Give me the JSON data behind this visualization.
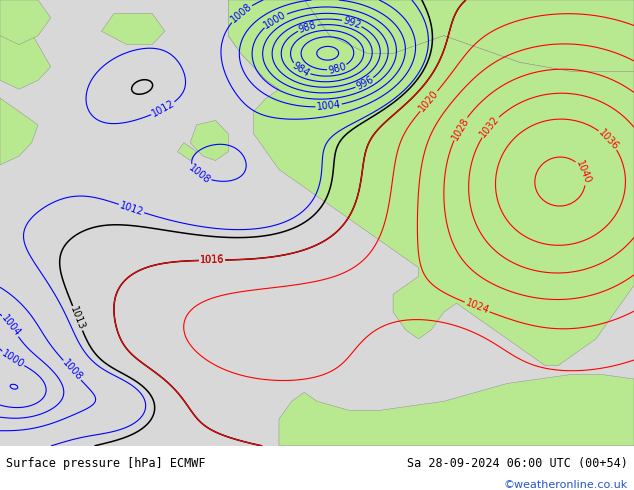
{
  "title_left": "Surface pressure [hPa] ECMWF",
  "title_right": "Sa 28-09-2024 06:00 UTC (00+54)",
  "watermark": "©weatheronline.co.uk",
  "bg_color": "#d8d8d8",
  "land_color": "#b8e890",
  "fig_width": 6.34,
  "fig_height": 4.9,
  "dpi": 100,
  "contour_interval": 4,
  "blue_threshold": 1013,
  "red_threshold": 1016,
  "label_fontsize": 7
}
